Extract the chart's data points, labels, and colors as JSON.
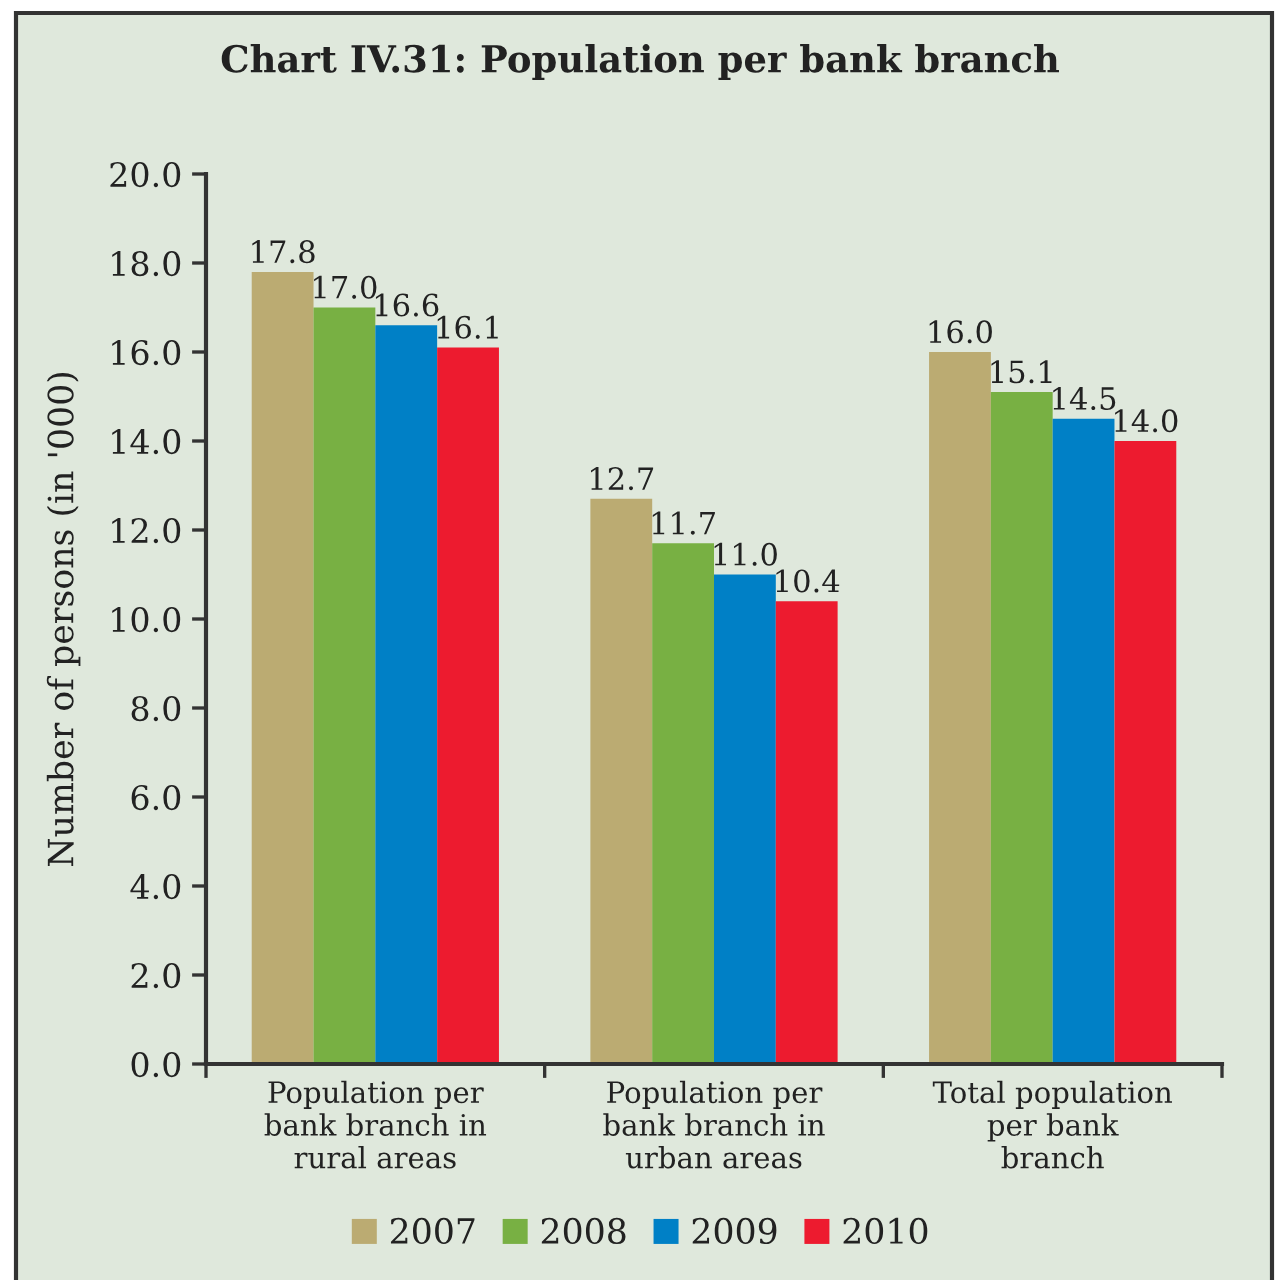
{
  "chart_data": {
    "type": "bar",
    "title": "Chart IV.31: Population per bank branch",
    "ylabel": "Number of persons (in '000)",
    "categories": [
      "Population per\nbank branch in\nrural areas",
      "Population per\nbank branch in\nurban areas",
      "Total population\nper bank\nbranch"
    ],
    "series": [
      {
        "name": "2007",
        "color": "#bbab72",
        "values": [
          17.8,
          12.7,
          16.0
        ],
        "value_labels": [
          "17.8",
          "12.7",
          "16.0"
        ]
      },
      {
        "name": "2008",
        "color": "#78b043",
        "values": [
          17.0,
          11.7,
          15.1
        ],
        "value_labels": [
          "17.0",
          "11.7",
          "15.1"
        ]
      },
      {
        "name": "2009",
        "color": "#0080c6",
        "values": [
          16.6,
          11.0,
          14.5
        ],
        "value_labels": [
          "16.6",
          "11.0",
          "14.5"
        ]
      },
      {
        "name": "2010",
        "color": "#ed1b2f",
        "values": [
          16.1,
          10.4,
          14.0
        ],
        "value_labels": [
          "16.1",
          "10.4",
          "14.0"
        ]
      }
    ],
    "ylim": [
      0,
      20
    ],
    "yticks": [
      {
        "value": 0,
        "label": "0.0"
      },
      {
        "value": 2,
        "label": "2.0"
      },
      {
        "value": 4,
        "label": "4.0"
      },
      {
        "value": 6,
        "label": "6.0"
      },
      {
        "value": 8,
        "label": "8.0"
      },
      {
        "value": 10,
        "label": "10.0"
      },
      {
        "value": 12,
        "label": "12.0"
      },
      {
        "value": 14,
        "label": "14.0"
      },
      {
        "value": 16,
        "label": "16.0"
      },
      {
        "value": 18,
        "label": "18.0"
      },
      {
        "value": 20,
        "label": "20.0"
      }
    ],
    "legend": "bottom"
  }
}
